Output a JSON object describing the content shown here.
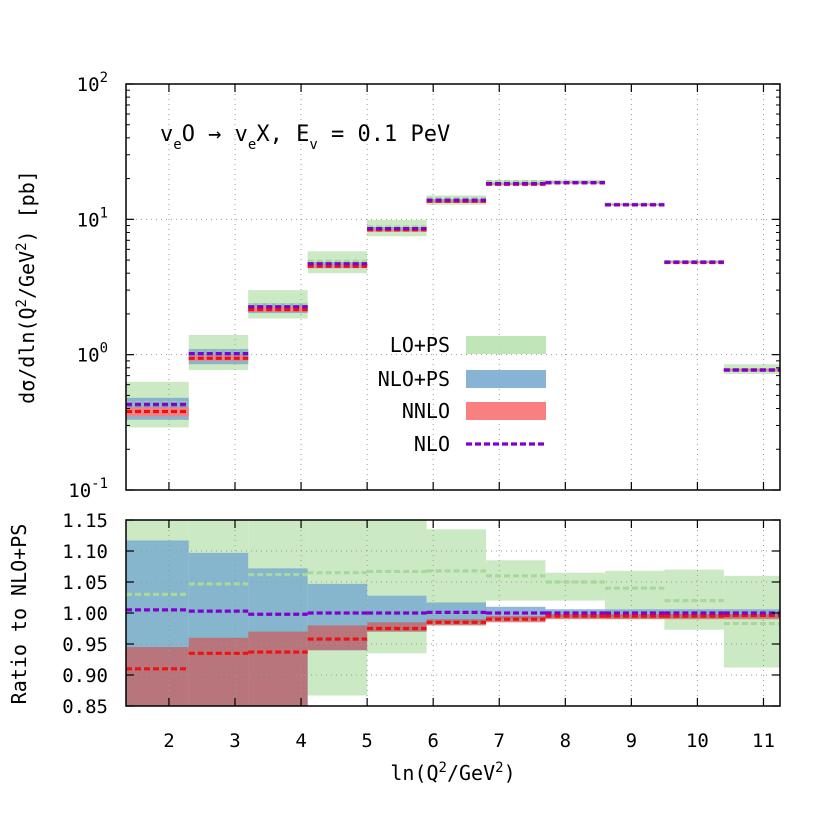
{
  "chart_data": [
    {
      "type": "step",
      "title": "ν_e O → ν_e X, E_ν = 0.1 PeV",
      "title_parts": [
        "v",
        "e",
        "O → v",
        "e",
        "X, E",
        "v",
        " = 0.1 PeV"
      ],
      "ylabel": "dσ/dln(Q²/GeV²) [pb]",
      "ylabel_parts": [
        "dσ/dln(Q",
        "2",
        "/GeV",
        "2",
        ") [pb]"
      ],
      "yscale": "log",
      "ylim": [
        0.1,
        100
      ],
      "ytick_labels": [
        {
          "base": "10",
          "exp": "-1",
          "value": 0.1
        },
        {
          "base": "10",
          "exp": "0",
          "value": 1
        },
        {
          "base": "10",
          "exp": "1",
          "value": 10
        },
        {
          "base": "10",
          "exp": "2",
          "value": 100
        }
      ],
      "xlim": [
        1.35,
        11.25
      ],
      "bin_edges": [
        1.35,
        2.3,
        3.2,
        4.1,
        5.0,
        5.9,
        6.8,
        7.7,
        8.6,
        9.5,
        10.4,
        11.25
      ],
      "grid": true,
      "legend_position": "center-right",
      "series": [
        {
          "name": "LO+PS",
          "kind": "band",
          "color": "#b9e3b0",
          "lo": [
            0.29,
            0.77,
            1.85,
            4.0,
            7.5,
            12.8,
            17.7,
            18.2,
            12.6,
            4.7,
            0.72
          ],
          "hi": [
            0.63,
            1.4,
            3.0,
            5.8,
            9.9,
            15.0,
            19.5,
            19.6,
            13.3,
            5.0,
            0.85
          ],
          "central": [
            0.44,
            1.04,
            2.35,
            4.9,
            8.8,
            14.3,
            19.0,
            18.8,
            12.9,
            4.85,
            0.77
          ]
        },
        {
          "name": "NLO+PS",
          "kind": "band",
          "color": "#7aacd0",
          "lo": [
            0.33,
            0.85,
            2.03,
            4.35,
            8.1,
            13.2,
            18.0,
            18.5,
            12.7,
            4.75,
            0.75
          ],
          "hi": [
            0.48,
            1.1,
            2.4,
            4.85,
            8.8,
            14.1,
            18.7,
            19.0,
            12.95,
            4.9,
            0.79
          ],
          "central": [
            0.42,
            1.0,
            2.25,
            4.65,
            8.5,
            13.8,
            18.3,
            18.7,
            12.8,
            4.82,
            0.77
          ]
        },
        {
          "name": "NNLO",
          "kind": "band",
          "color": "#f88080",
          "lo": [
            0.35,
            0.9,
            2.07,
            4.4,
            8.2,
            13.4,
            18.0,
            18.5,
            12.7,
            4.76,
            0.76
          ],
          "hi": [
            0.41,
            1.0,
            2.28,
            4.62,
            8.5,
            13.8,
            18.3,
            18.75,
            12.85,
            4.85,
            0.78
          ],
          "central": [
            0.38,
            0.94,
            2.15,
            4.5,
            8.35,
            13.6,
            18.15,
            18.6,
            12.78,
            4.8,
            0.77
          ]
        },
        {
          "name": "NLO",
          "kind": "line",
          "color": "#8000d0",
          "values": [
            0.43,
            1.02,
            2.26,
            4.7,
            8.55,
            13.85,
            18.35,
            18.7,
            12.8,
            4.83,
            0.77
          ]
        }
      ]
    },
    {
      "type": "step",
      "ylabel": "Ratio to NLO+PS",
      "xlabel": "ln(Q²/GeV²)",
      "xlabel_parts": [
        "ln(Q",
        "2",
        "/GeV",
        "2",
        ")"
      ],
      "ylim": [
        0.85,
        1.15
      ],
      "ytick_labels": [
        "0.85",
        "0.90",
        "0.95",
        "1.00",
        "1.05",
        "1.10",
        "1.15"
      ],
      "ytick_values": [
        0.85,
        0.9,
        0.95,
        1.0,
        1.05,
        1.1,
        1.15
      ],
      "xtick_labels": [
        "2",
        "3",
        "4",
        "5",
        "6",
        "7",
        "8",
        "9",
        "10",
        "11"
      ],
      "xtick_values": [
        2,
        3,
        4,
        5,
        6,
        7,
        8,
        9,
        10,
        11
      ],
      "xlim": [
        1.35,
        11.25
      ],
      "bin_edges": [
        1.35,
        2.3,
        3.2,
        4.1,
        5.0,
        5.9,
        6.8,
        7.7,
        8.6,
        9.5,
        10.4,
        11.25
      ],
      "grid": true,
      "series": [
        {
          "name": "LO+PS",
          "kind": "band",
          "color": "#b9e3b0",
          "lo": [
            0.85,
            0.85,
            0.85,
            0.867,
            0.935,
            0.98,
            1.02,
            1.02,
            0.99,
            0.973,
            0.912
          ],
          "hi": [
            1.15,
            1.15,
            1.15,
            1.15,
            1.15,
            1.135,
            1.085,
            1.065,
            1.068,
            1.07,
            1.06
          ],
          "central": [
            1.03,
            1.047,
            1.062,
            1.065,
            1.067,
            1.068,
            1.06,
            1.05,
            1.04,
            1.02,
            0.983
          ],
          "central_color": "#a8d89c"
        },
        {
          "name": "NLO+PS",
          "kind": "band",
          "color": "#7aacd0",
          "lo": [
            0.85,
            0.85,
            0.85,
            0.94,
            0.97,
            0.985,
            0.99,
            0.993,
            0.993,
            0.993,
            0.993
          ],
          "hi": [
            1.117,
            1.097,
            1.072,
            1.047,
            1.028,
            1.017,
            1.01,
            1.006,
            1.006,
            1.006,
            1.006
          ]
        },
        {
          "name": "NNLO",
          "kind": "band",
          "color": "#c86060",
          "lo": [
            0.85,
            0.85,
            0.85,
            0.94,
            0.97,
            0.98,
            0.985,
            0.99,
            0.99,
            0.99,
            0.99
          ],
          "hi": [
            0.945,
            0.96,
            0.97,
            0.98,
            0.985,
            0.99,
            0.995,
            0.998,
            0.998,
            0.998,
            0.998
          ],
          "central": [
            0.91,
            0.935,
            0.937,
            0.958,
            0.975,
            0.985,
            0.99,
            0.995,
            0.995,
            0.995,
            0.996
          ],
          "central_color": "#ee1111"
        },
        {
          "name": "NLO",
          "kind": "line",
          "color": "#8000d0",
          "values": [
            1.005,
            1.003,
            0.998,
            1.0,
            1.0,
            1.001,
            1.0,
            1.0,
            1.0,
            1.0,
            1.0
          ]
        }
      ]
    }
  ]
}
